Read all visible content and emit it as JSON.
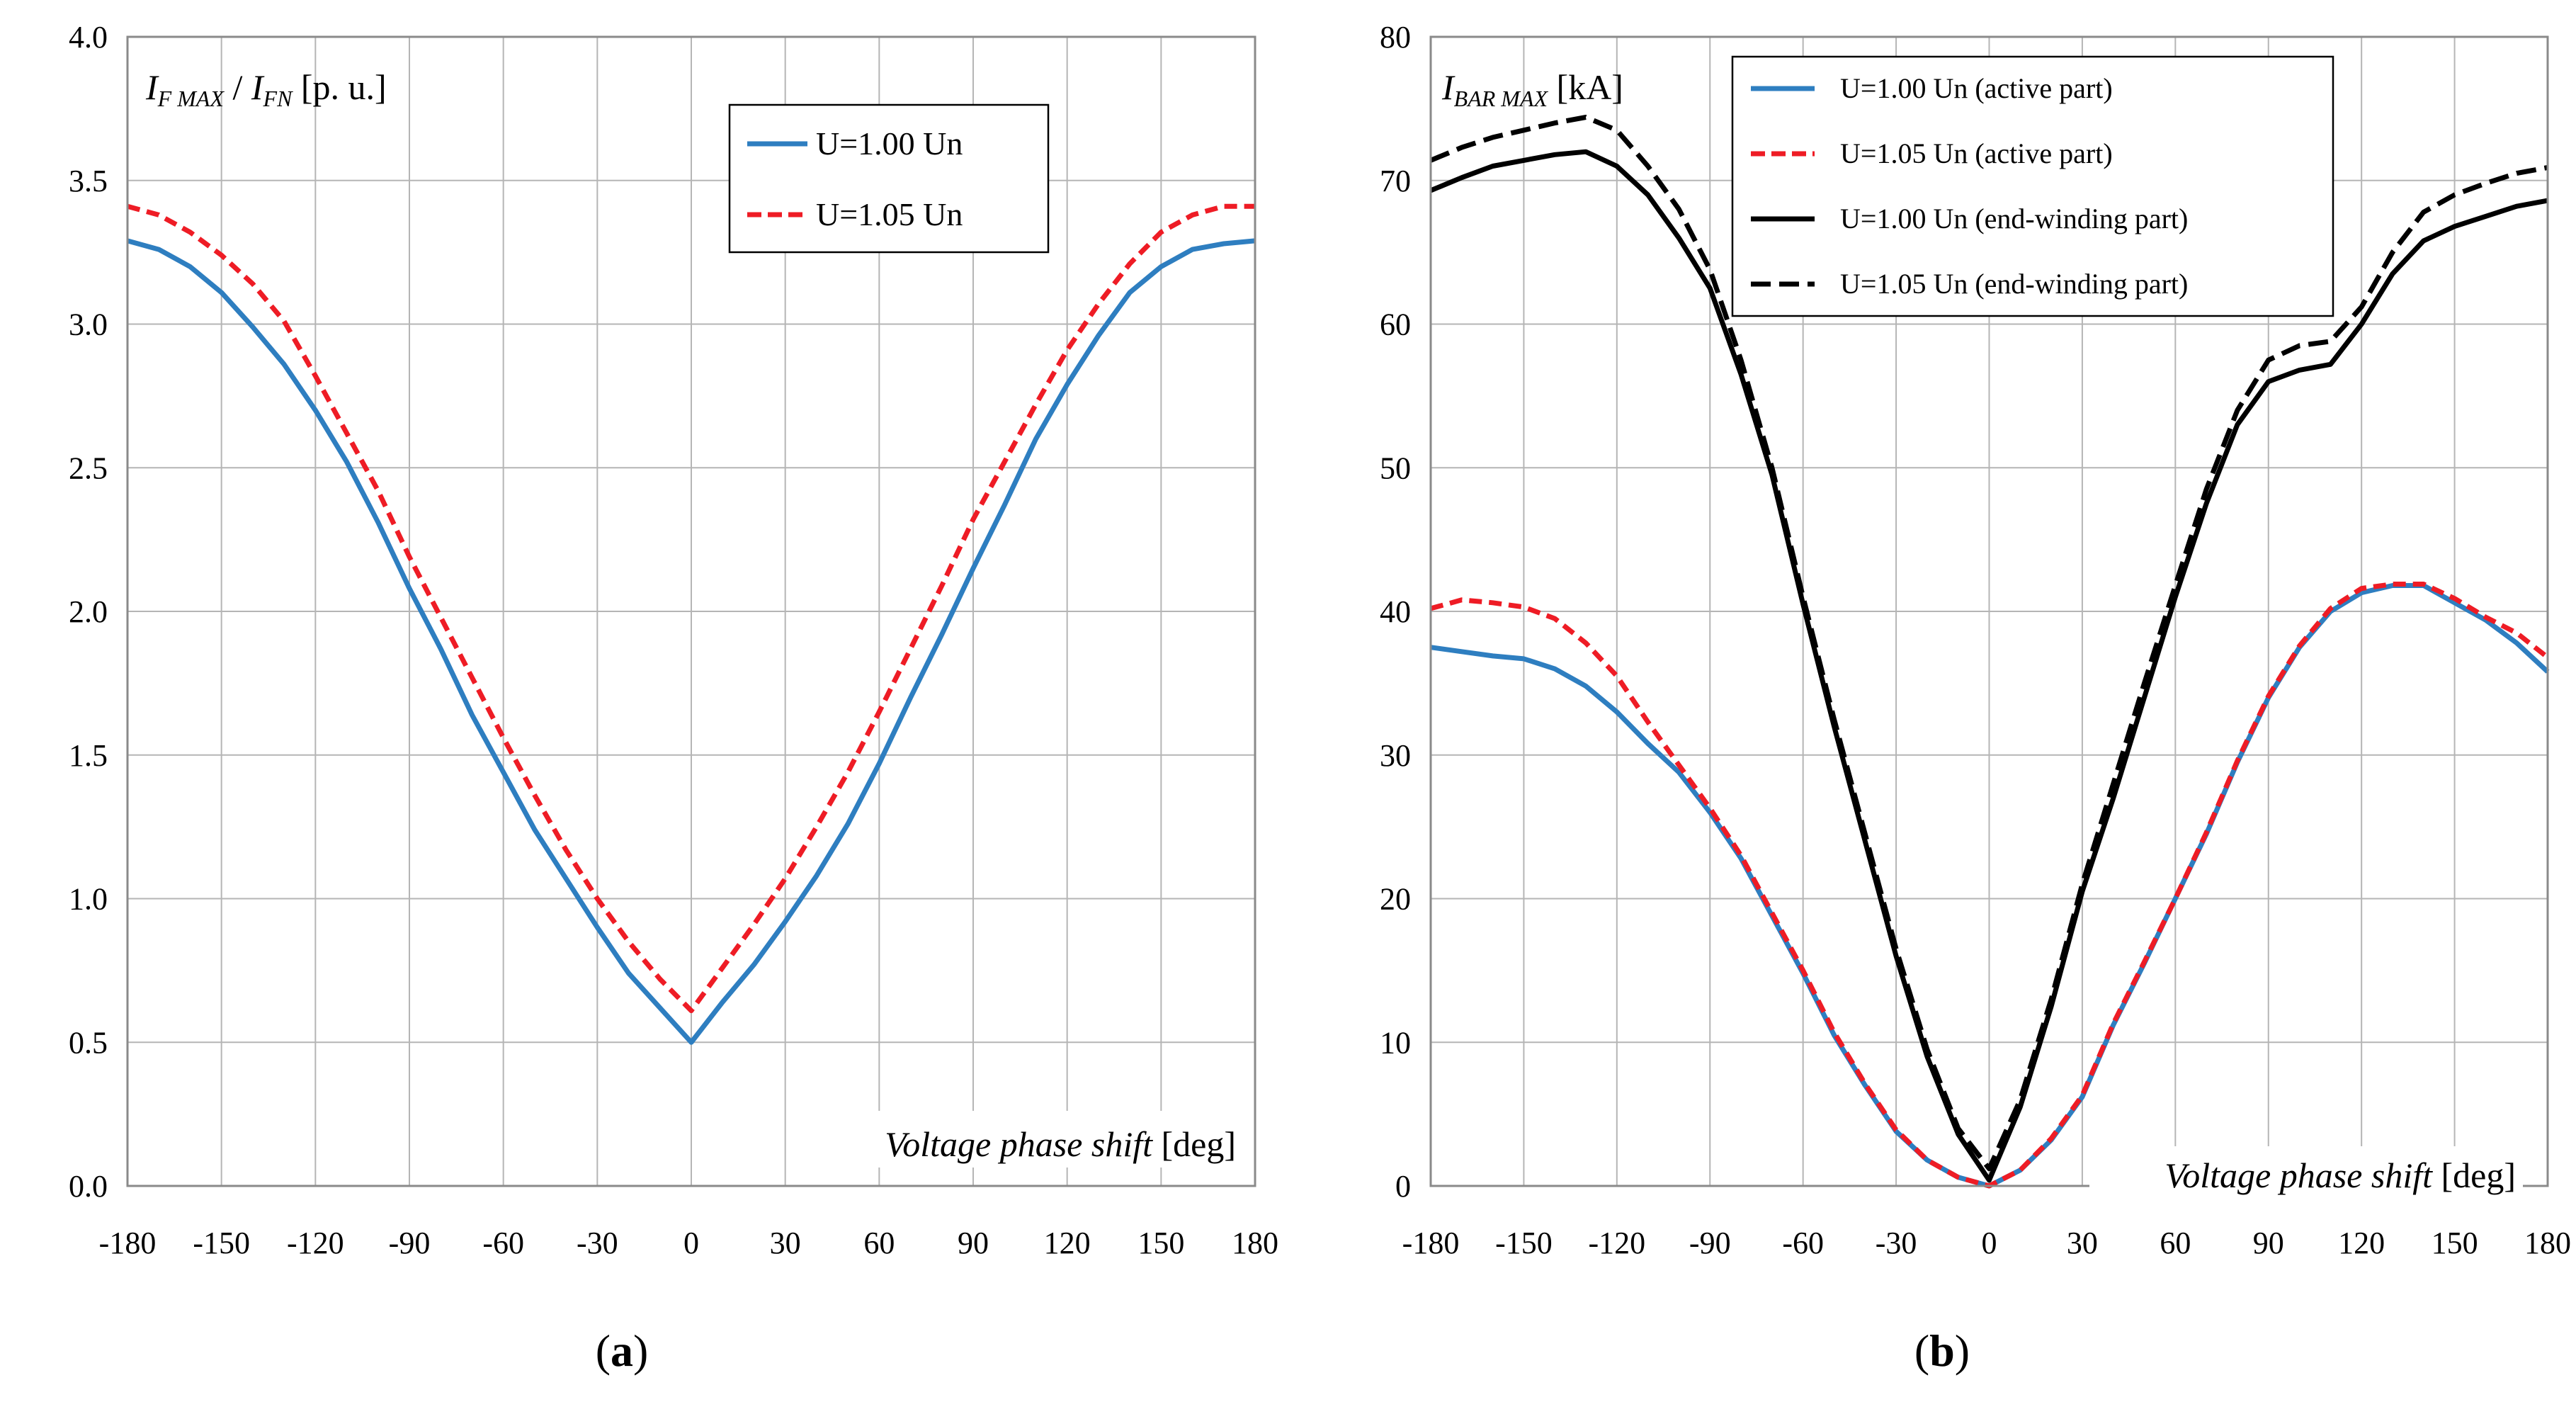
{
  "figure": {
    "panel_labels": [
      {
        "open": "(",
        "letter": "a",
        "close": ")"
      },
      {
        "open": "(",
        "letter": "b",
        "close": ")"
      }
    ]
  },
  "chart_data": [
    {
      "type": "line",
      "panel": "a",
      "title": "",
      "ylabel": {
        "main1": "I",
        "sub1": "F MAX",
        "sep": " / ",
        "main2": "I",
        "sub2": "FN",
        "unit": " [p. u.]"
      },
      "xlabel": {
        "italic": "Voltage phase shift",
        "unit": " [deg]"
      },
      "xlim": [
        -180,
        180
      ],
      "ylim": [
        0.0,
        4.0
      ],
      "xticks": [
        -180,
        -150,
        -120,
        -90,
        -60,
        -30,
        0,
        30,
        60,
        90,
        120,
        150,
        180
      ],
      "xtick_labels": [
        "-180",
        "-150",
        "-120",
        "-90",
        "-60",
        "-30",
        "0",
        "30",
        "60",
        "90",
        "120",
        "150",
        "180"
      ],
      "yticks": [
        0.0,
        0.5,
        1.0,
        1.5,
        2.0,
        2.5,
        3.0,
        3.5,
        4.0
      ],
      "ytick_labels": [
        "0.0",
        "0.5",
        "1.0",
        "1.5",
        "2.0",
        "2.5",
        "3.0",
        "3.5",
        "4.0"
      ],
      "grid": true,
      "legend": "top-right",
      "series": [
        {
          "name": "U=1.00 Un",
          "color": "#2e7ec0",
          "dash": "solid",
          "x": [
            -180,
            -170,
            -160,
            -150,
            -140,
            -130,
            -120,
            -110,
            -100,
            -90,
            -80,
            -70,
            -60,
            -50,
            -40,
            -30,
            -20,
            -10,
            0,
            10,
            20,
            30,
            40,
            50,
            60,
            70,
            80,
            90,
            100,
            110,
            120,
            130,
            140,
            150,
            160,
            170,
            180
          ],
          "values": [
            3.29,
            3.26,
            3.2,
            3.11,
            2.99,
            2.86,
            2.7,
            2.52,
            2.31,
            2.08,
            1.87,
            1.64,
            1.44,
            1.24,
            1.07,
            0.9,
            0.74,
            0.62,
            0.5,
            0.64,
            0.77,
            0.92,
            1.08,
            1.26,
            1.47,
            1.7,
            1.92,
            2.15,
            2.37,
            2.6,
            2.79,
            2.96,
            3.11,
            3.2,
            3.26,
            3.28,
            3.29
          ]
        },
        {
          "name": "U=1.05 Un",
          "color": "#ee1c25",
          "dash": "dashed",
          "x": [
            -180,
            -170,
            -160,
            -150,
            -140,
            -130,
            -120,
            -110,
            -100,
            -90,
            -80,
            -70,
            -60,
            -50,
            -40,
            -30,
            -20,
            -10,
            0,
            10,
            20,
            30,
            40,
            50,
            60,
            70,
            80,
            90,
            100,
            110,
            120,
            130,
            140,
            150,
            160,
            170,
            180
          ],
          "values": [
            3.41,
            3.38,
            3.32,
            3.24,
            3.14,
            3.01,
            2.82,
            2.62,
            2.42,
            2.19,
            1.98,
            1.77,
            1.56,
            1.36,
            1.17,
            1.0,
            0.85,
            0.72,
            0.61,
            0.76,
            0.91,
            1.07,
            1.25,
            1.44,
            1.65,
            1.87,
            2.09,
            2.32,
            2.52,
            2.72,
            2.91,
            3.07,
            3.21,
            3.32,
            3.38,
            3.41,
            3.41
          ]
        }
      ]
    },
    {
      "type": "line",
      "panel": "b",
      "title": "",
      "ylabel": {
        "main1": "I",
        "sub1": "BAR MAX",
        "unit": " [kA]"
      },
      "xlabel": {
        "italic": "Voltage phase shift",
        "unit": " [deg]"
      },
      "xlim": [
        -180,
        180
      ],
      "ylim": [
        0,
        80
      ],
      "xticks": [
        -180,
        -150,
        -120,
        -90,
        -60,
        -30,
        0,
        30,
        60,
        90,
        120,
        150,
        180
      ],
      "xtick_labels": [
        "-180",
        "-150",
        "-120",
        "-90",
        "-60",
        "-30",
        "0",
        "30",
        "60",
        "90",
        "120",
        "150",
        "180"
      ],
      "yticks": [
        0,
        10,
        20,
        30,
        40,
        50,
        60,
        70,
        80
      ],
      "ytick_labels": [
        "0",
        "10",
        "20",
        "30",
        "40",
        "50",
        "60",
        "70",
        "80"
      ],
      "grid": true,
      "legend": "top-left",
      "series": [
        {
          "name": "U=1.00 Un (active part)",
          "color": "#2e7ec0",
          "dash": "solid",
          "x": [
            -180,
            -170,
            -160,
            -150,
            -140,
            -130,
            -120,
            -110,
            -100,
            -90,
            -80,
            -70,
            -60,
            -50,
            -40,
            -30,
            -20,
            -10,
            0,
            10,
            20,
            30,
            40,
            50,
            60,
            70,
            80,
            90,
            100,
            110,
            120,
            130,
            140,
            150,
            160,
            170,
            180
          ],
          "values": [
            37.5,
            37.2,
            36.9,
            36.7,
            36.0,
            34.8,
            33.0,
            30.8,
            28.8,
            26.0,
            22.8,
            18.8,
            14.8,
            10.5,
            7.0,
            3.8,
            1.8,
            0.6,
            0.0,
            1.1,
            3.2,
            6.2,
            11.2,
            15.5,
            20.0,
            24.5,
            29.5,
            34.0,
            37.5,
            40.0,
            41.3,
            41.8,
            41.8,
            40.6,
            39.4,
            37.8,
            35.8
          ]
        },
        {
          "name": "U=1.05 Un (active part)",
          "color": "#ee1c25",
          "dash": "dashed",
          "x": [
            -180,
            -170,
            -160,
            -150,
            -140,
            -130,
            -120,
            -110,
            -100,
            -90,
            -80,
            -70,
            -60,
            -50,
            -40,
            -30,
            -20,
            -10,
            0,
            10,
            20,
            30,
            40,
            50,
            60,
            70,
            80,
            90,
            100,
            110,
            120,
            130,
            140,
            150,
            160,
            170,
            180
          ],
          "values": [
            40.2,
            40.8,
            40.6,
            40.3,
            39.5,
            37.8,
            35.5,
            32.3,
            29.3,
            26.3,
            23.0,
            19.0,
            15.0,
            10.7,
            7.1,
            3.9,
            1.8,
            0.6,
            0.0,
            1.1,
            3.3,
            6.3,
            11.3,
            15.6,
            20.0,
            24.6,
            29.6,
            34.1,
            37.6,
            40.2,
            41.6,
            41.9,
            41.9,
            40.9,
            39.6,
            38.5,
            36.8
          ]
        },
        {
          "name": "U=1.00 Un (end-winding part)",
          "color": "#000000",
          "dash": "solid",
          "x": [
            -180,
            -170,
            -160,
            -150,
            -140,
            -130,
            -120,
            -110,
            -100,
            -90,
            -80,
            -70,
            -60,
            -50,
            -40,
            -30,
            -20,
            -10,
            0,
            10,
            20,
            30,
            40,
            50,
            60,
            70,
            80,
            90,
            100,
            110,
            120,
            130,
            140,
            150,
            160,
            170,
            180
          ],
          "values": [
            69.3,
            70.2,
            71.0,
            71.4,
            71.8,
            72.0,
            71.0,
            69.0,
            66.0,
            62.5,
            56.5,
            49.5,
            40.5,
            32.0,
            24.0,
            16.0,
            9.0,
            3.6,
            0.4,
            5.5,
            12.5,
            20.5,
            27.0,
            34.0,
            41.0,
            47.5,
            53.0,
            56.0,
            56.8,
            57.2,
            60.0,
            63.5,
            65.8,
            66.8,
            67.5,
            68.2,
            68.6
          ]
        },
        {
          "name": "U=1.05 Un (end-winding part)",
          "color": "#000000",
          "dash": "dashed",
          "x": [
            -180,
            -170,
            -160,
            -150,
            -140,
            -130,
            -120,
            -110,
            -100,
            -90,
            -80,
            -70,
            -60,
            -50,
            -40,
            -30,
            -20,
            -10,
            0,
            10,
            20,
            30,
            40,
            50,
            60,
            70,
            80,
            90,
            100,
            110,
            120,
            130,
            140,
            150,
            160,
            170,
            180
          ],
          "values": [
            71.4,
            72.3,
            73.0,
            73.5,
            74.0,
            74.4,
            73.5,
            71.0,
            68.0,
            63.8,
            57.5,
            50.0,
            41.0,
            32.5,
            24.5,
            16.5,
            9.5,
            4.0,
            1.2,
            6.0,
            13.0,
            21.0,
            28.0,
            35.0,
            41.8,
            48.5,
            54.0,
            57.5,
            58.5,
            58.8,
            61.2,
            65.0,
            67.8,
            69.0,
            69.8,
            70.5,
            70.9
          ]
        }
      ]
    }
  ]
}
